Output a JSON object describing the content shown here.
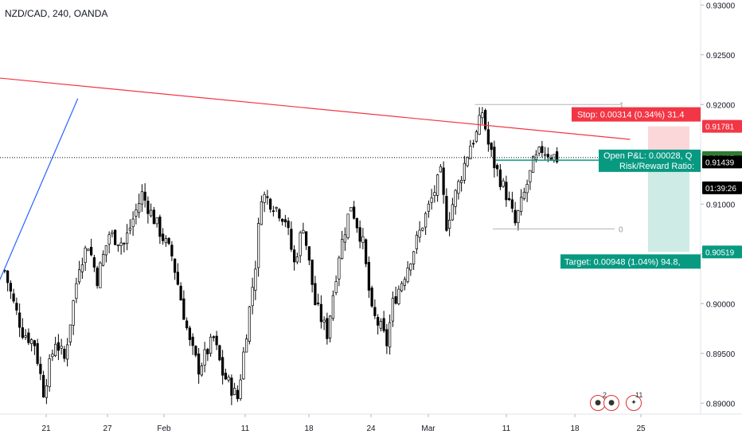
{
  "header": {
    "symbol_line": "NZD/CAD, 240, OANDA"
  },
  "chart_data": {
    "type": "candlestick",
    "symbol": "NZD/CAD",
    "interval": "240",
    "source": "OANDA",
    "price_axis": {
      "min": 0.8865,
      "max": 0.9305,
      "ticks": [
        "0.93000",
        "0.92500",
        "0.92000",
        "0.91500",
        "0.91000",
        "0.90500",
        "0.90000",
        "0.89500",
        "0.89000"
      ],
      "tick_values": [
        0.93,
        0.925,
        0.92,
        0.915,
        0.91,
        0.905,
        0.9,
        0.895,
        0.89
      ]
    },
    "time_axis": {
      "labels": [
        "21",
        "27",
        "Feb",
        "11",
        "18",
        "24",
        "Mar",
        "11",
        "18",
        "25"
      ]
    },
    "current_price": {
      "value": 0.91467,
      "label": "0.91467",
      "color": "#2e7d32"
    },
    "countdown": {
      "label": "01:39:26"
    },
    "entry_price": {
      "value": 0.91439,
      "label": "0.91439"
    },
    "stop": {
      "value": 0.91781,
      "label": "0.91781",
      "text": "Stop: 0.00314 (0.34%) 31.4",
      "color": "#f23645"
    },
    "target": {
      "value": 0.90519,
      "label": "0.90519",
      "text": "Target: 0.00948 (1.04%) 94.8, ",
      "color": "#089981"
    },
    "open_pl_text": "Open P&L: 0.00028, Q",
    "rr_text": "Risk/Reward Ratio: ",
    "fib": {
      "level_1_label": "1",
      "level_0_label": "0",
      "level_1_value": 0.92,
      "level_0_value": 0.9075
    },
    "trendlines": [
      {
        "name": "red-resistance",
        "color": "#f23645",
        "from": {
          "bar": -6,
          "price": 0.9228
        },
        "to": {
          "bar": 210,
          "price": 0.9165
        }
      },
      {
        "name": "blue-support",
        "color": "#2962ff",
        "from": {
          "bar": -6,
          "price": 0.899
        },
        "to": {
          "bar": 25,
          "price": 0.9206
        }
      }
    ],
    "path_waypoints": [
      [
        0,
        0.9033
      ],
      [
        3,
        0.9
      ],
      [
        6,
        0.8972
      ],
      [
        10,
        0.896
      ],
      [
        13,
        0.8912
      ],
      [
        17,
        0.8963
      ],
      [
        20,
        0.8944
      ],
      [
        25,
        0.904
      ],
      [
        28,
        0.906
      ],
      [
        31,
        0.9025
      ],
      [
        35,
        0.907
      ],
      [
        40,
        0.906
      ],
      [
        46,
        0.911
      ],
      [
        50,
        0.9085
      ],
      [
        54,
        0.906
      ],
      [
        56,
        0.9048
      ],
      [
        58,
        0.902
      ],
      [
        62,
        0.896
      ],
      [
        65,
        0.8935
      ],
      [
        70,
        0.8965
      ],
      [
        73,
        0.893
      ],
      [
        75,
        0.892
      ],
      [
        78,
        0.8905
      ],
      [
        80,
        0.895
      ],
      [
        84,
        0.904
      ],
      [
        86,
        0.911
      ],
      [
        90,
        0.91
      ],
      [
        94,
        0.9085
      ],
      [
        97,
        0.904
      ],
      [
        100,
        0.908
      ],
      [
        104,
        0.9
      ],
      [
        106,
        0.8985
      ],
      [
        108,
        0.897
      ],
      [
        112,
        0.905
      ],
      [
        116,
        0.91
      ],
      [
        120,
        0.906
      ],
      [
        123,
        0.899
      ],
      [
        126,
        0.8975
      ],
      [
        128,
        0.896
      ],
      [
        130,
        0.9
      ],
      [
        134,
        0.903
      ],
      [
        140,
        0.908
      ],
      [
        146,
        0.913
      ],
      [
        148,
        0.908
      ],
      [
        150,
        0.91
      ],
      [
        156,
        0.916
      ],
      [
        158,
        0.917
      ],
      [
        160,
        0.9193
      ],
      [
        162,
        0.916
      ],
      [
        164,
        0.914
      ],
      [
        168,
        0.911
      ],
      [
        171,
        0.908
      ],
      [
        174,
        0.911
      ],
      [
        177,
        0.914
      ],
      [
        180,
        0.9155
      ],
      [
        183,
        0.915
      ],
      [
        185,
        0.9146
      ]
    ]
  },
  "events": [
    {
      "icon": "nz-flag-icon",
      "badge": "2"
    },
    {
      "icon": "ca-flag-icon",
      "badge": "11"
    }
  ]
}
